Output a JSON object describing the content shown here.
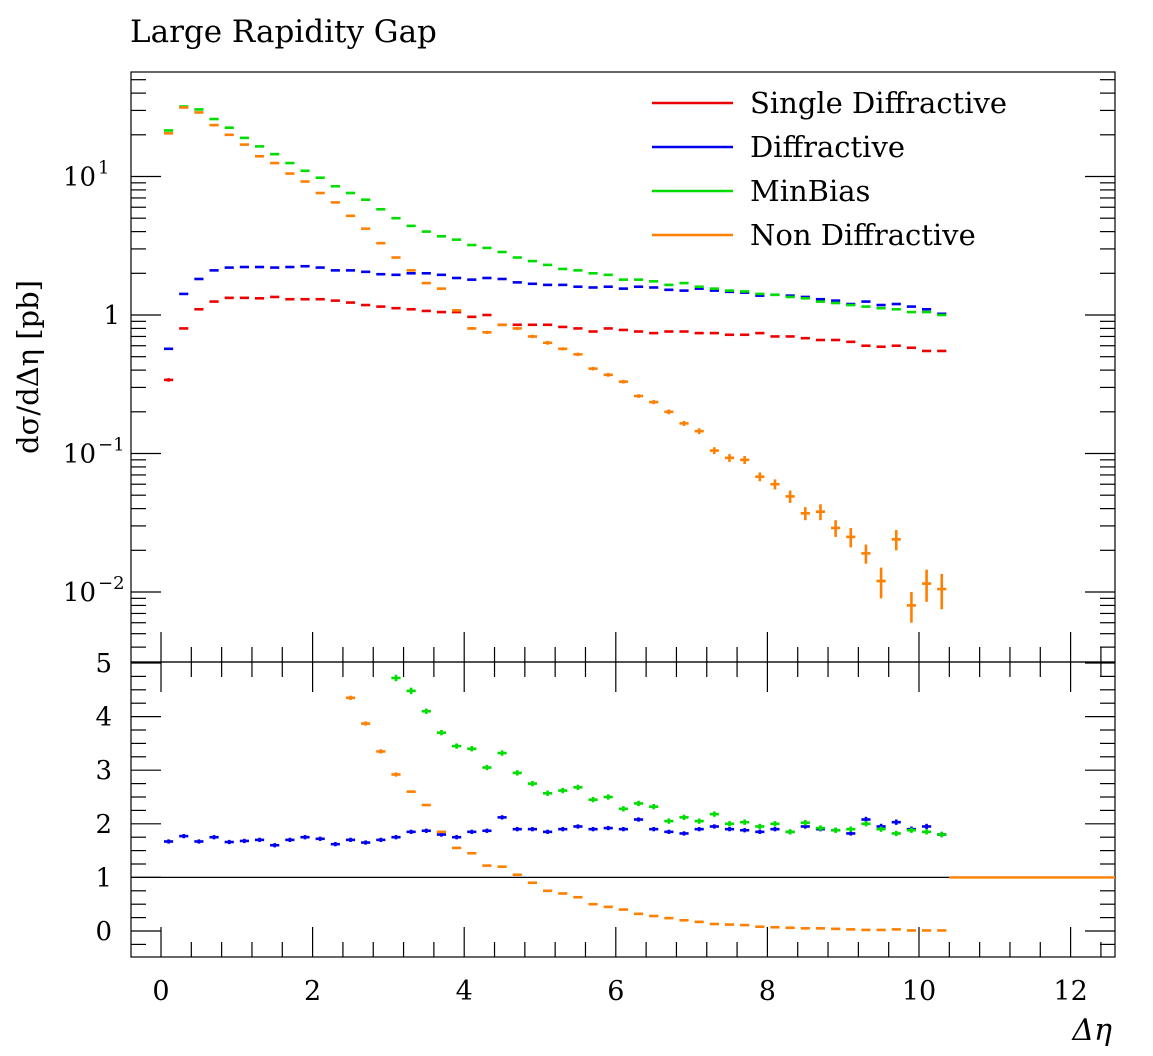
{
  "chart_data": {
    "type": "scatter",
    "title": "Large Rapidity Gap",
    "xlabel": "Δη",
    "ylabel": "dσ/dΔη [pb]",
    "xlim": [
      -0.4,
      12.6
    ],
    "x_ticks": [
      "0",
      "2",
      "4",
      "6",
      "8",
      "10",
      "12"
    ],
    "x_tick_values": [
      0,
      2,
      4,
      6,
      8,
      10,
      12
    ],
    "main_yscale": "log",
    "main_ylim": [
      0.004,
      60
    ],
    "main_y_ticks": [
      "10",
      "1",
      "10",
      "10"
    ],
    "main_y_tick_exponents": [
      "1",
      "",
      "−1",
      "−2"
    ],
    "main_y_tick_values": [
      10,
      1,
      0.1,
      0.01
    ],
    "ratio_ylim": [
      -0.5,
      5
    ],
    "ratio_y_ticks": [
      "5",
      "4",
      "3",
      "2",
      "1",
      "0"
    ],
    "ratio_y_tick_values": [
      5,
      4,
      3,
      2,
      1,
      0
    ],
    "ratio_reference": 1,
    "bin_width": 0.2,
    "x": [
      0.1,
      0.3,
      0.5,
      0.7,
      0.9,
      1.1,
      1.3,
      1.5,
      1.7,
      1.9,
      2.1,
      2.3,
      2.5,
      2.7,
      2.9,
      3.1,
      3.3,
      3.5,
      3.7,
      3.9,
      4.1,
      4.3,
      4.5,
      4.7,
      4.9,
      5.1,
      5.3,
      5.5,
      5.7,
      5.9,
      6.1,
      6.3,
      6.5,
      6.7,
      6.9,
      7.1,
      7.3,
      7.5,
      7.7,
      7.9,
      8.1,
      8.3,
      8.5,
      8.7,
      8.9,
      9.1,
      9.3,
      9.5,
      9.7,
      9.9,
      10.1,
      10.3
    ],
    "legend": {
      "placement": "top-right"
    },
    "series": [
      {
        "name": "Single Diffractive",
        "color": "#ee0000",
        "values": [
          0.34,
          0.8,
          1.1,
          1.25,
          1.33,
          1.33,
          1.32,
          1.35,
          1.3,
          1.3,
          1.3,
          1.27,
          1.23,
          1.18,
          1.15,
          1.12,
          1.1,
          1.07,
          1.05,
          1.05,
          0.97,
          1.0,
          0.85,
          0.85,
          0.85,
          0.85,
          0.82,
          0.8,
          0.76,
          0.8,
          0.78,
          0.76,
          0.74,
          0.76,
          0.76,
          0.74,
          0.74,
          0.72,
          0.72,
          0.74,
          0.7,
          0.7,
          0.68,
          0.66,
          0.66,
          0.64,
          0.6,
          0.59,
          0.6,
          0.58,
          0.55,
          0.55
        ],
        "errors": [
          0.01,
          0.01,
          0.01,
          0.01,
          0.01,
          0.01,
          0.01,
          0.01,
          0.01,
          0.01,
          0.01,
          0.01,
          0.01,
          0.01,
          0.01,
          0.01,
          0.01,
          0.01,
          0.01,
          0.01,
          0.01,
          0.01,
          0.01,
          0.01,
          0.01,
          0.01,
          0.01,
          0.01,
          0.01,
          0.01,
          0.01,
          0.01,
          0.01,
          0.01,
          0.01,
          0.01,
          0.01,
          0.01,
          0.01,
          0.01,
          0.01,
          0.01,
          0.01,
          0.01,
          0.01,
          0.01,
          0.01,
          0.01,
          0.01,
          0.01,
          0.01,
          0.01
        ],
        "ratio": [],
        "ratio_errors": []
      },
      {
        "name": "Diffractive",
        "color": "#0000ee",
        "values": [
          0.57,
          1.42,
          1.82,
          2.1,
          2.2,
          2.22,
          2.22,
          2.2,
          2.22,
          2.25,
          2.2,
          2.1,
          2.1,
          2.05,
          1.97,
          1.95,
          2.0,
          2.0,
          1.95,
          1.85,
          1.8,
          1.85,
          1.82,
          1.72,
          1.68,
          1.65,
          1.65,
          1.6,
          1.58,
          1.6,
          1.55,
          1.6,
          1.58,
          1.52,
          1.5,
          1.55,
          1.5,
          1.47,
          1.45,
          1.38,
          1.4,
          1.38,
          1.35,
          1.3,
          1.27,
          1.2,
          1.25,
          1.18,
          1.2,
          1.15,
          1.1,
          1.02
        ],
        "errors": [
          0.01,
          0.02,
          0.02,
          0.02,
          0.02,
          0.02,
          0.02,
          0.02,
          0.02,
          0.02,
          0.02,
          0.02,
          0.02,
          0.02,
          0.02,
          0.02,
          0.02,
          0.02,
          0.02,
          0.02,
          0.02,
          0.02,
          0.02,
          0.02,
          0.02,
          0.02,
          0.02,
          0.02,
          0.02,
          0.02,
          0.02,
          0.02,
          0.02,
          0.02,
          0.02,
          0.02,
          0.02,
          0.02,
          0.02,
          0.02,
          0.02,
          0.02,
          0.02,
          0.02,
          0.02,
          0.02,
          0.02,
          0.02,
          0.02,
          0.02,
          0.02,
          0.02
        ],
        "ratio": [
          1.67,
          1.77,
          1.67,
          1.75,
          1.66,
          1.68,
          1.7,
          1.6,
          1.7,
          1.75,
          1.72,
          1.62,
          1.7,
          1.65,
          1.7,
          1.75,
          1.85,
          1.87,
          1.8,
          1.75,
          1.85,
          1.87,
          2.12,
          1.9,
          1.9,
          1.85,
          1.9,
          1.95,
          1.9,
          1.92,
          1.9,
          2.08,
          1.9,
          1.85,
          1.82,
          1.9,
          1.95,
          1.9,
          1.88,
          1.85,
          1.9,
          1.85,
          1.95,
          1.9,
          1.88,
          1.82,
          2.08,
          1.95,
          2.03,
          1.9,
          1.95,
          1.8
        ],
        "ratio_errors": [
          0.04,
          0.04,
          0.04,
          0.04,
          0.04,
          0.04,
          0.04,
          0.04,
          0.04,
          0.04,
          0.04,
          0.04,
          0.04,
          0.04,
          0.04,
          0.04,
          0.04,
          0.04,
          0.04,
          0.04,
          0.04,
          0.04,
          0.04,
          0.04,
          0.04,
          0.04,
          0.04,
          0.04,
          0.04,
          0.04,
          0.04,
          0.04,
          0.04,
          0.04,
          0.04,
          0.04,
          0.04,
          0.04,
          0.04,
          0.04,
          0.04,
          0.04,
          0.04,
          0.04,
          0.04,
          0.04,
          0.05,
          0.05,
          0.05,
          0.05,
          0.05,
          0.05
        ]
      },
      {
        "name": "MinBias",
        "color": "#00dd00",
        "values": [
          21.5,
          32,
          30.5,
          26,
          22.5,
          19,
          16.5,
          14.5,
          12.5,
          11,
          9.8,
          8.5,
          7.6,
          6.8,
          5.8,
          5.0,
          4.4,
          4.0,
          3.7,
          3.5,
          3.2,
          3.05,
          2.85,
          2.6,
          2.45,
          2.3,
          2.15,
          2.1,
          2.0,
          1.95,
          1.8,
          1.8,
          1.75,
          1.65,
          1.7,
          1.6,
          1.55,
          1.5,
          1.48,
          1.42,
          1.4,
          1.35,
          1.32,
          1.25,
          1.22,
          1.18,
          1.15,
          1.12,
          1.1,
          1.05,
          1.05,
          1.0
        ],
        "errors": [
          0.2,
          0.3,
          0.3,
          0.2,
          0.2,
          0.15,
          0.15,
          0.1,
          0.1,
          0.1,
          0.08,
          0.07,
          0.06,
          0.05,
          0.05,
          0.04,
          0.04,
          0.03,
          0.03,
          0.03,
          0.03,
          0.03,
          0.03,
          0.02,
          0.02,
          0.02,
          0.02,
          0.02,
          0.02,
          0.02,
          0.02,
          0.02,
          0.02,
          0.02,
          0.02,
          0.02,
          0.02,
          0.02,
          0.02,
          0.02,
          0.02,
          0.02,
          0.02,
          0.02,
          0.02,
          0.02,
          0.02,
          0.02,
          0.02,
          0.02,
          0.02,
          0.02
        ],
        "ratio": [
          null,
          null,
          null,
          null,
          null,
          null,
          null,
          null,
          null,
          null,
          null,
          null,
          null,
          null,
          null,
          4.72,
          4.48,
          4.1,
          3.7,
          3.45,
          3.4,
          3.05,
          3.32,
          2.95,
          2.75,
          2.57,
          2.62,
          2.68,
          2.45,
          2.5,
          2.28,
          2.38,
          2.32,
          2.05,
          2.12,
          2.05,
          2.18,
          2.0,
          2.03,
          1.95,
          2.0,
          1.85,
          2.02,
          1.92,
          1.88,
          1.9,
          2.0,
          1.9,
          1.82,
          1.88,
          1.85,
          1.8
        ],
        "ratio_errors": [
          0,
          0,
          0,
          0,
          0,
          0,
          0,
          0,
          0,
          0,
          0,
          0,
          0,
          0,
          0,
          0.06,
          0.06,
          0.05,
          0.05,
          0.05,
          0.05,
          0.05,
          0.05,
          0.05,
          0.05,
          0.05,
          0.05,
          0.05,
          0.05,
          0.05,
          0.05,
          0.05,
          0.05,
          0.05,
          0.05,
          0.05,
          0.05,
          0.05,
          0.05,
          0.05,
          0.05,
          0.05,
          0.05,
          0.05,
          0.05,
          0.05,
          0.05,
          0.05,
          0.05,
          0.05,
          0.05,
          0.05
        ]
      },
      {
        "name": "Non Diffractive",
        "color": "#ff7f00",
        "values": [
          20.5,
          31.5,
          29,
          23.5,
          20,
          17,
          14,
          12.5,
          10.5,
          9.2,
          7.6,
          6.5,
          5.2,
          4.2,
          3.3,
          2.6,
          2.1,
          1.7,
          1.55,
          1.08,
          0.8,
          0.75,
          0.85,
          0.8,
          0.7,
          0.63,
          0.57,
          0.52,
          0.41,
          0.37,
          0.33,
          0.26,
          0.235,
          0.2,
          0.165,
          0.145,
          0.105,
          0.093,
          0.09,
          0.068,
          0.06,
          0.049,
          0.037,
          0.038,
          0.029,
          0.025,
          0.019,
          0.012,
          0.024,
          0.008,
          0.0115,
          0.0105
        ],
        "errors": [
          0.2,
          0.3,
          0.3,
          0.25,
          0.2,
          0.15,
          0.15,
          0.12,
          0.1,
          0.1,
          0.08,
          0.07,
          0.06,
          0.05,
          0.04,
          0.04,
          0.03,
          0.03,
          0.03,
          0.02,
          0.02,
          0.02,
          0.02,
          0.02,
          0.02,
          0.02,
          0.015,
          0.015,
          0.012,
          0.012,
          0.01,
          0.008,
          0.008,
          0.008,
          0.007,
          0.007,
          0.006,
          0.006,
          0.006,
          0.005,
          0.005,
          0.005,
          0.004,
          0.005,
          0.004,
          0.004,
          0.003,
          0.003,
          0.004,
          0.002,
          0.003,
          0.003
        ],
        "ratio": [
          null,
          null,
          null,
          null,
          null,
          null,
          null,
          null,
          null,
          null,
          null,
          null,
          4.35,
          3.87,
          3.35,
          2.92,
          2.6,
          2.35,
          1.85,
          1.55,
          1.45,
          1.22,
          1.2,
          1.05,
          0.9,
          0.75,
          0.7,
          0.63,
          0.5,
          0.45,
          0.4,
          0.32,
          0.28,
          0.24,
          0.2,
          0.17,
          0.13,
          0.12,
          0.11,
          0.08,
          0.07,
          0.06,
          0.05,
          0.05,
          0.04,
          0.03,
          0.02,
          0.02,
          0.03,
          0.01,
          0.01,
          0.01
        ],
        "ratio_errors": [
          0,
          0,
          0,
          0,
          0,
          0,
          0,
          0,
          0,
          0,
          0,
          0,
          0.04,
          0.04,
          0.04,
          0.04,
          0.03,
          0.03,
          0.03,
          0.02,
          0.02,
          0.02,
          0.02,
          0.02,
          0.02,
          0.02,
          0.01,
          0.01,
          0.01,
          0.01,
          0.01,
          0.01,
          0.01,
          0.01,
          0.01,
          0.01,
          0.01,
          0.01,
          0.01,
          0.01,
          0.01,
          0.01,
          0.01,
          0.01,
          0.01,
          0.01,
          0.01,
          0.01,
          0.01,
          0.01,
          0.01,
          0.01
        ]
      }
    ]
  }
}
